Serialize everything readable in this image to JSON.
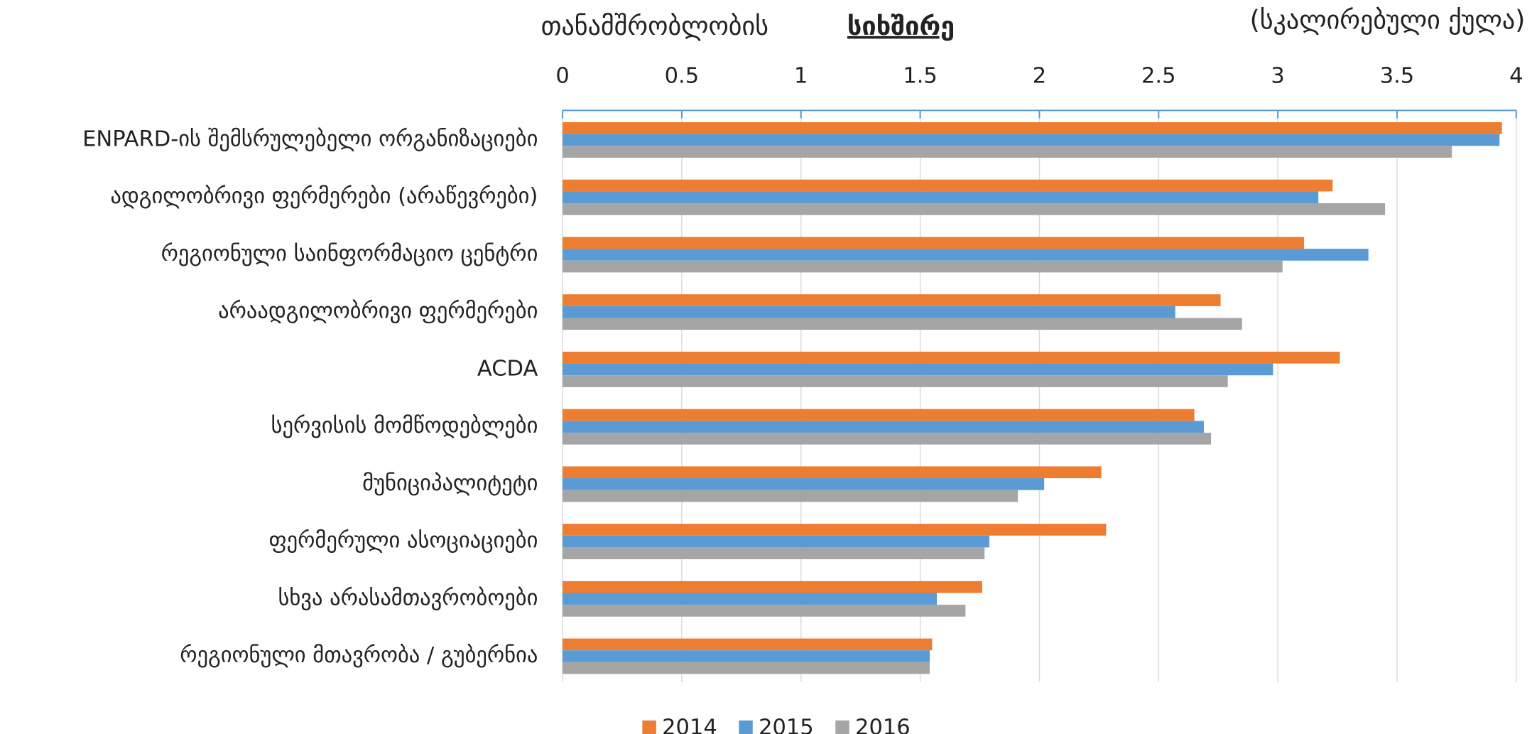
{
  "chart_data": {
    "type": "hbar",
    "title": "თანამშრობლობის",
    "title_emphasis": "სიხშირე",
    "subtitle": "(სკალირებული ქულა)",
    "categories": [
      "ENPARD-ის შემსრულებელი ორგანიზაციები",
      "ადგილობრივი ფერმერები (არაწევრები)",
      "რეგიონული საინფორმაციო ცენტრი",
      "არაადგილობრივი ფერმერები",
      "ACDA",
      "სერვისის მომწოდებლები",
      "მუნიციპალიტეტი",
      "ფერმერული ასოციაციები",
      "სხვა არასამთავრობოები",
      "რეგიონული მთავრობა / გუბერნია"
    ],
    "series": [
      {
        "name": "2014",
        "color": "#ed7d31",
        "values": [
          3.94,
          3.23,
          3.11,
          2.76,
          3.26,
          2.65,
          2.26,
          2.28,
          1.76,
          1.55
        ]
      },
      {
        "name": "2015",
        "color": "#5b9bd5",
        "values": [
          3.93,
          3.17,
          3.38,
          2.57,
          2.98,
          2.69,
          2.02,
          1.79,
          1.57,
          1.54
        ]
      },
      {
        "name": "2016",
        "color": "#a5a5a5",
        "values": [
          3.73,
          3.45,
          3.02,
          2.85,
          2.79,
          2.72,
          1.91,
          1.77,
          1.69,
          1.54
        ]
      }
    ],
    "xlim": [
      0,
      4
    ],
    "xticks": [
      0,
      0.5,
      1,
      1.5,
      2,
      2.5,
      3,
      3.5,
      4
    ],
    "grid": true
  }
}
